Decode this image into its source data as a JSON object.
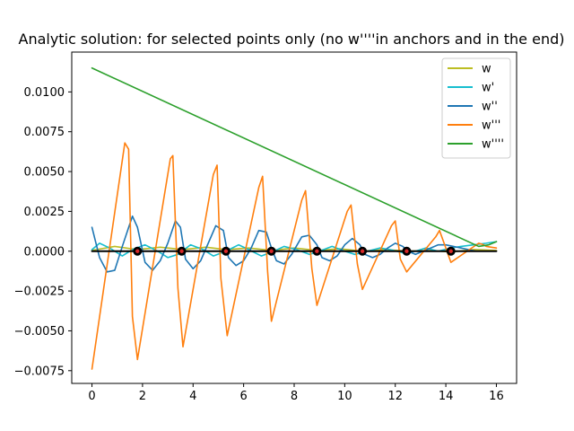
{
  "chart_data": {
    "type": "line",
    "title": "Analytic solution: for selected points only (no w''''in anchors and in the end)",
    "xlabel": "",
    "ylabel": "",
    "xlim": [
      -0.8,
      16.8
    ],
    "ylim": [
      -0.0083,
      0.0125
    ],
    "xticks": [
      0,
      2,
      4,
      6,
      8,
      10,
      12,
      14,
      16
    ],
    "xtick_labels": [
      "0",
      "2",
      "4",
      "6",
      "8",
      "10",
      "12",
      "14",
      "16"
    ],
    "yticks": [
      -0.0075,
      -0.005,
      -0.0025,
      0,
      0.0025,
      0.005,
      0.0075,
      0.01
    ],
    "ytick_labels": [
      "−0.0075",
      "−0.0050",
      "−0.0025",
      "0.0000",
      "0.0025",
      "0.0050",
      "0.0075",
      "0.0100"
    ],
    "legend_position": "upper right",
    "grid": false,
    "series": [
      {
        "name": "w",
        "color": "#bcbd22",
        "x": [
          0,
          0.9,
          1.8,
          2.7,
          3.6,
          4.5,
          5.3,
          6.2,
          7.1,
          8.0,
          8.9,
          9.8,
          10.7,
          11.6,
          12.5,
          13.4,
          14.2,
          15.1,
          16
        ],
        "y": [
          5e-05,
          0.0003,
          0.0001,
          0.00025,
          0.0001,
          0.00025,
          0.0001,
          0.0002,
          5e-05,
          0.0002,
          5e-05,
          0.00015,
          0.0,
          0.0001,
          0.0,
          5e-05,
          -5e-05,
          0.0001,
          5e-05
        ]
      },
      {
        "name": "w'",
        "color": "#17becf",
        "x": [
          0,
          0.3,
          0.7,
          1.2,
          1.6,
          2.1,
          2.6,
          3.0,
          3.4,
          3.9,
          4.4,
          4.8,
          5.3,
          5.8,
          6.2,
          6.7,
          7.2,
          7.6,
          8.1,
          8.6,
          9.0,
          9.5,
          10.0,
          10.4,
          10.9,
          11.4,
          11.8,
          12.3,
          12.8,
          13.2,
          13.7,
          14.2,
          14.6,
          15.1,
          15.6,
          16
        ],
        "y": [
          0.0001,
          0.0005,
          0.0002,
          -0.0003,
          0.0001,
          0.0004,
          0.0,
          -0.0004,
          -0.0002,
          0.0004,
          0.0001,
          -0.0003,
          0.0,
          0.0004,
          0.0001,
          -0.0003,
          0.0,
          0.0003,
          0.0001,
          -0.0002,
          0.0,
          0.0003,
          0.0,
          -0.0002,
          0.0,
          0.0002,
          0.0001,
          -0.0001,
          0.0,
          0.0002,
          0.0,
          0.0002,
          0.0003,
          0.0004,
          0.0005,
          0.0006
        ]
      },
      {
        "name": "w''",
        "color": "#1f77b4",
        "x": [
          0,
          0.3,
          0.6,
          0.9,
          1.2,
          1.6,
          1.8,
          2.1,
          2.4,
          2.7,
          3.0,
          3.3,
          3.5,
          3.7,
          4.0,
          4.3,
          4.6,
          4.9,
          5.2,
          5.4,
          5.7,
          6.0,
          6.3,
          6.6,
          6.9,
          7.1,
          7.3,
          7.6,
          7.9,
          8.3,
          8.6,
          8.9,
          9.1,
          9.4,
          9.7,
          10.0,
          10.3,
          10.6,
          10.8,
          11.1,
          11.4,
          11.7,
          12.0,
          12.3,
          12.5,
          12.8,
          13.1,
          13.4,
          13.7,
          14.0,
          14.3,
          14.6,
          14.9,
          15.2,
          15.5
        ],
        "y": [
          0.0015,
          -0.0004,
          -0.0013,
          -0.0012,
          0.0003,
          0.0022,
          0.0015,
          -0.0007,
          -0.0012,
          -0.0006,
          0.0005,
          0.0019,
          0.0015,
          -0.0005,
          -0.0011,
          -0.0006,
          0.0005,
          0.0016,
          0.0013,
          -0.0004,
          -0.0009,
          -0.0006,
          0.0002,
          0.0013,
          0.0012,
          0.0002,
          -0.0006,
          -0.0008,
          -0.0002,
          0.0009,
          0.001,
          0.0004,
          -0.0004,
          -0.0006,
          -0.0003,
          0.0004,
          0.0008,
          0.0004,
          -0.0002,
          -0.0004,
          -0.0002,
          0.0002,
          0.0005,
          0.0003,
          0.0,
          -0.0002,
          0.0,
          0.0002,
          0.0004,
          0.0004,
          0.0003,
          0.0002,
          0.0001,
          0.0,
          0.0
        ]
      },
      {
        "name": "w'''",
        "color": "#ff7f0e",
        "x": [
          0,
          1.3,
          1.45,
          1.6,
          1.8,
          3.1,
          3.2,
          3.4,
          3.6,
          4.8,
          4.95,
          5.1,
          5.35,
          6.6,
          6.75,
          6.95,
          7.1,
          8.3,
          8.45,
          8.7,
          8.9,
          10.1,
          10.25,
          10.5,
          10.7,
          11.85,
          12.0,
          12.2,
          12.45,
          13.6,
          13.75,
          14.0,
          14.2,
          15.3,
          15.5,
          15.6,
          16
        ],
        "y": [
          -0.0074,
          0.0068,
          0.0064,
          -0.0041,
          -0.0068,
          0.0058,
          0.006,
          -0.0023,
          -0.006,
          0.0048,
          0.0054,
          -0.0017,
          -0.0053,
          0.004,
          0.0047,
          -0.0013,
          -0.0044,
          0.0032,
          0.0038,
          -0.0011,
          -0.0034,
          0.0025,
          0.0029,
          -0.0008,
          -0.0024,
          0.0016,
          0.0019,
          -0.0005,
          -0.0013,
          0.0009,
          0.0013,
          0.0002,
          -0.0007,
          0.0005,
          0.0004,
          0.0003,
          0.0002
        ]
      },
      {
        "name": "w''''",
        "color": "#2ca02c",
        "x": [
          0,
          15.3,
          15.7,
          16
        ],
        "y": [
          0.0115,
          0.0003,
          0.0004,
          0.0006
        ]
      },
      {
        "name": "",
        "color": "#000000",
        "role": "baseline",
        "x": [
          0,
          16
        ],
        "y": [
          0,
          0
        ]
      }
    ],
    "anchors": {
      "x": [
        1.8,
        3.55,
        5.3,
        7.1,
        8.9,
        10.7,
        12.45,
        14.2
      ],
      "y": [
        0,
        0,
        0,
        0,
        0,
        0,
        0,
        0
      ],
      "outer_color": "#000000",
      "inner_color": "#d62728"
    }
  }
}
